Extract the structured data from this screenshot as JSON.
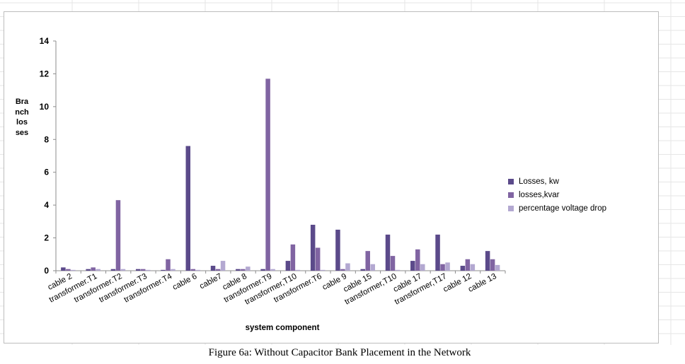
{
  "chart_data": {
    "type": "bar",
    "title": "",
    "xlabel": "system component",
    "ylabel": "Branch losses",
    "ylim": [
      0,
      14
    ],
    "yticks": [
      0,
      2,
      4,
      6,
      8,
      10,
      12,
      14
    ],
    "grid": false,
    "legend_position": "right",
    "categories": [
      "cable 2",
      "transformer.T1",
      "transformer.T2",
      "transformer.T3",
      "transformer.T4",
      "cable 6",
      "cable7",
      "cable 8",
      "transformer.T9",
      "transformer,T10",
      "transformer.T6",
      "cable 9",
      "cable 15",
      "transformer,T10",
      "cable 17",
      "transformer,T17",
      "cable 12",
      "cable 13"
    ],
    "series": [
      {
        "name": "Losses, kw",
        "color": "#5b4a8a",
        "values": [
          0.2,
          0.1,
          0.1,
          0.1,
          0.05,
          7.6,
          0.3,
          0.1,
          0.1,
          0.6,
          2.8,
          2.5,
          0.1,
          2.2,
          0.6,
          2.2,
          0.3,
          1.2
        ]
      },
      {
        "name": "losses,kvar",
        "color": "#8064a2",
        "values": [
          0.1,
          0.2,
          4.3,
          0.1,
          0.7,
          0.1,
          0.1,
          0.1,
          11.7,
          1.6,
          1.4,
          0.1,
          1.2,
          0.9,
          1.3,
          0.4,
          0.7,
          0.7
        ]
      },
      {
        "name": "percentage voltage drop",
        "color": "#b3a8d1",
        "values": [
          0.05,
          0.1,
          0.1,
          0.05,
          0.1,
          0.05,
          0.6,
          0.25,
          0.1,
          0.05,
          0.05,
          0.45,
          0.4,
          0.05,
          0.4,
          0.5,
          0.4,
          0.35
        ]
      }
    ]
  },
  "caption": "Figure 6a:  Without Capacitor Bank Placement in the Network"
}
